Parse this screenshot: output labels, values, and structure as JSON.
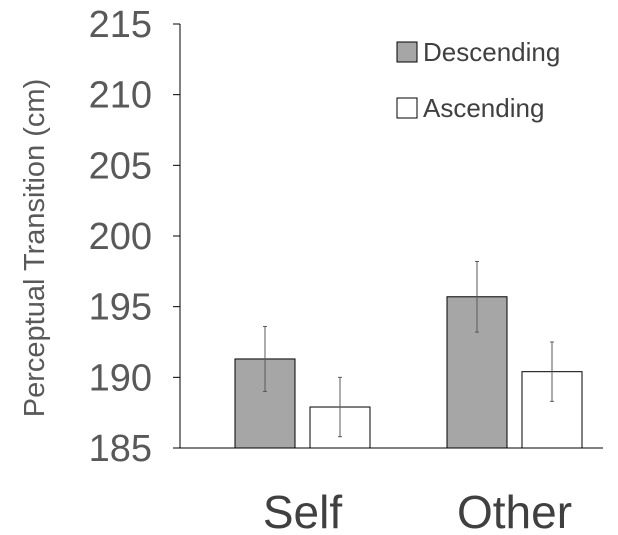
{
  "chart_data": {
    "type": "bar",
    "categories": [
      "Self",
      "Other"
    ],
    "series": [
      {
        "name": "Descending",
        "color": "#a6a6a6",
        "values": [
          191.3,
          195.7
        ],
        "errors": [
          2.3,
          2.5
        ]
      },
      {
        "name": "Ascending",
        "color": "#ffffff",
        "values": [
          187.9,
          190.4
        ],
        "errors": [
          2.1,
          2.1
        ]
      }
    ],
    "ylabel": "Perceptual Transition (cm)",
    "xlabel": "",
    "ylim": [
      185,
      215
    ],
    "yticks": [
      215,
      210,
      205,
      200,
      195,
      190,
      185
    ],
    "grid": false,
    "legend_position": "top-right"
  }
}
